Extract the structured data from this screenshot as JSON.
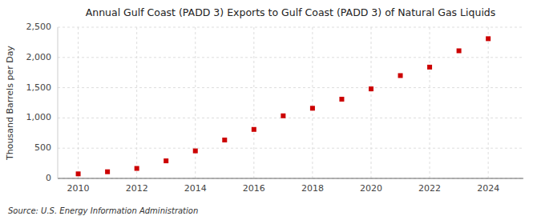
{
  "chart_data": {
    "type": "scatter",
    "title": "Annual Gulf Coast (PADD 3) Exports to Gulf Coast (PADD 3) of Natural Gas Liquids",
    "ylabel": "Thousand Barrels per Day",
    "annotations": [
      "Source: U.S. Energy Information Administration"
    ],
    "x": [
      2010,
      2011,
      2012,
      2013,
      2014,
      2015,
      2016,
      2017,
      2018,
      2019,
      2020,
      2021,
      2022,
      2023,
      2024
    ],
    "values": [
      75,
      110,
      165,
      290,
      455,
      635,
      810,
      1035,
      1160,
      1310,
      1480,
      1700,
      1840,
      2110,
      2310
    ],
    "color": "#cc0000",
    "marker": "square",
    "xlim": [
      2009.3,
      2025.2
    ],
    "xticks": [
      2010,
      2012,
      2014,
      2016,
      2018,
      2020,
      2022,
      2024
    ],
    "ylim": [
      0,
      2500
    ],
    "yticks": [
      0,
      500,
      {
        "value": 1000,
        "label": "1,000"
      },
      {
        "value": 1500,
        "label": "1,500"
      },
      {
        "value": 2000,
        "label": "2,000"
      },
      {
        "value": 2500,
        "label": "2,500"
      }
    ],
    "grid": true
  }
}
